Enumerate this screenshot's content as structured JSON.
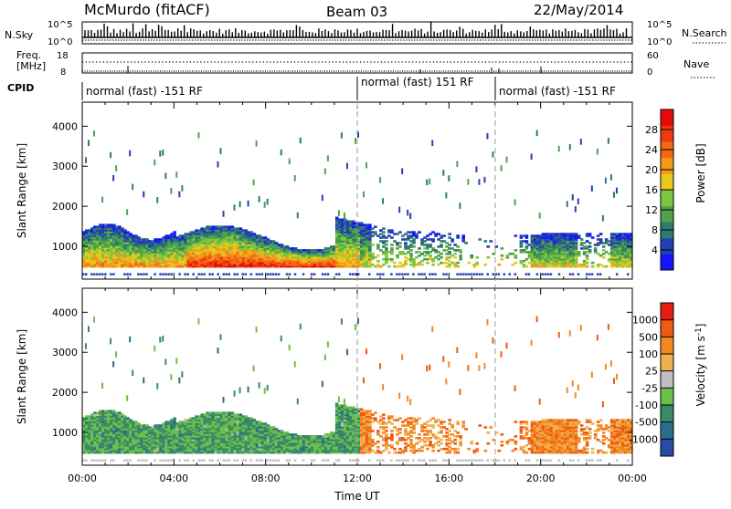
{
  "header": {
    "station": "McMurdo (fitACF)",
    "beam": "Beam 03",
    "date": "22/May/2014"
  },
  "summary_panels": {
    "nsky": {
      "label": "N.Sky",
      "ticks": [
        "10^5",
        "10^0"
      ],
      "right_label": "N.Search",
      "right_ticks": [
        "10^5",
        "10^0"
      ]
    },
    "freq": {
      "label_line1": "Freq.",
      "label_line2": "[MHz]",
      "ticks": [
        "18",
        "8"
      ],
      "right_label": "Nave",
      "right_ticks": [
        "60",
        "0"
      ]
    },
    "cpid": {
      "label": "CPID",
      "segments": [
        {
          "label": "normal (fast) -151 RF",
          "start_hour": 0,
          "end_hour": 12
        },
        {
          "label": "normal (fast) 151 RF",
          "start_hour": 12,
          "end_hour": 18
        },
        {
          "label": "normal (fast) -151 RF",
          "start_hour": 18,
          "end_hour": 24
        }
      ]
    }
  },
  "chart_data": [
    {
      "type": "heatmap",
      "name": "power",
      "ylabel": "Slant Range [km]",
      "xlim": [
        0,
        24
      ],
      "ylim": [
        180,
        4600
      ],
      "y_ticks": [
        1000,
        2000,
        3000,
        4000
      ],
      "colorbar": {
        "label": "Power [dB]",
        "ticks": [
          "28",
          "24",
          "20",
          "16",
          "12",
          "8",
          "4"
        ],
        "colors": [
          "#1414ff",
          "#2440b4",
          "#2f7a6e",
          "#4fa24a",
          "#7ec642",
          "#e6c81e",
          "#f39a1a",
          "#f46a14",
          "#ee3a10",
          "#e60a0a"
        ]
      },
      "data_extent_hours": [
        0,
        24
      ],
      "main_echo_band_km": [
        400,
        1600
      ]
    },
    {
      "type": "heatmap",
      "name": "velocity",
      "ylabel": "Slant Range [km]",
      "xlabel": "Time UT",
      "xlim": [
        0,
        24
      ],
      "ylim": [
        180,
        4600
      ],
      "y_ticks": [
        1000,
        2000,
        3000,
        4000
      ],
      "x_ticks": [
        "00:00",
        "04:00",
        "08:00",
        "12:00",
        "16:00",
        "20:00",
        "00:00"
      ],
      "colorbar": {
        "label": "Velocity [m s-1]",
        "label_text": "Velocity [m s",
        "label_sup": "-1",
        "label_end": "]",
        "ticks": [
          "1000",
          "500",
          "100",
          "25",
          "-25",
          "-100",
          "-500",
          "-1000"
        ],
        "colors": [
          "#2a4aa8",
          "#2c6c8c",
          "#3a8a6a",
          "#6cbf4a",
          "#bfbfbf",
          "#f0b050",
          "#f08a20",
          "#ef5a14",
          "#e61e10"
        ]
      },
      "main_echo_band_km": [
        400,
        1600
      ]
    }
  ]
}
